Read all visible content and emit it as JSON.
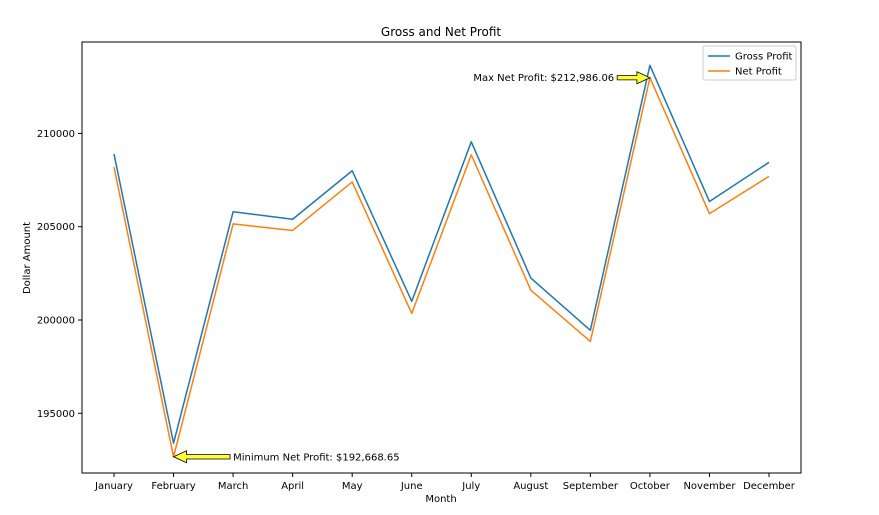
{
  "chart_data": {
    "type": "line",
    "title": "Gross and Net Profit",
    "xlabel": "Month",
    "ylabel": "Dollar Amount",
    "categories": [
      "January",
      "February",
      "March",
      "April",
      "May",
      "June",
      "July",
      "August",
      "September",
      "October",
      "November",
      "December"
    ],
    "yticks": [
      195000,
      200000,
      205000,
      210000
    ],
    "ytick_labels": [
      "195000",
      "200000",
      "205000",
      "210000"
    ],
    "ylim": [
      191800,
      214900
    ],
    "grid": false,
    "legend_position": "top-right",
    "series": [
      {
        "name": "Gross Profit",
        "color": "#1f77b4",
        "values": [
          208900,
          193400,
          205800,
          205400,
          208000,
          201000,
          209550,
          202250,
          199450,
          213650,
          206350,
          208450
        ]
      },
      {
        "name": "Net Profit",
        "color": "#ff7f0e",
        "values": [
          208200,
          192668.65,
          205150,
          204800,
          207400,
          200350,
          208850,
          201600,
          198850,
          212986.06,
          205700,
          207700
        ]
      }
    ],
    "annotations": [
      {
        "text": "Max Net Profit: $212,986.06",
        "point_index": 9,
        "point_value": 212986.06,
        "anchor": "end",
        "text_category_offset": -0.6,
        "text_value": 212986.06
      },
      {
        "text": "Minimum Net Profit: $192,668.65",
        "point_index": 1,
        "point_value": 192668.65,
        "anchor": "start",
        "text_category_offset": 1.0,
        "text_value": 192668.65
      }
    ]
  }
}
